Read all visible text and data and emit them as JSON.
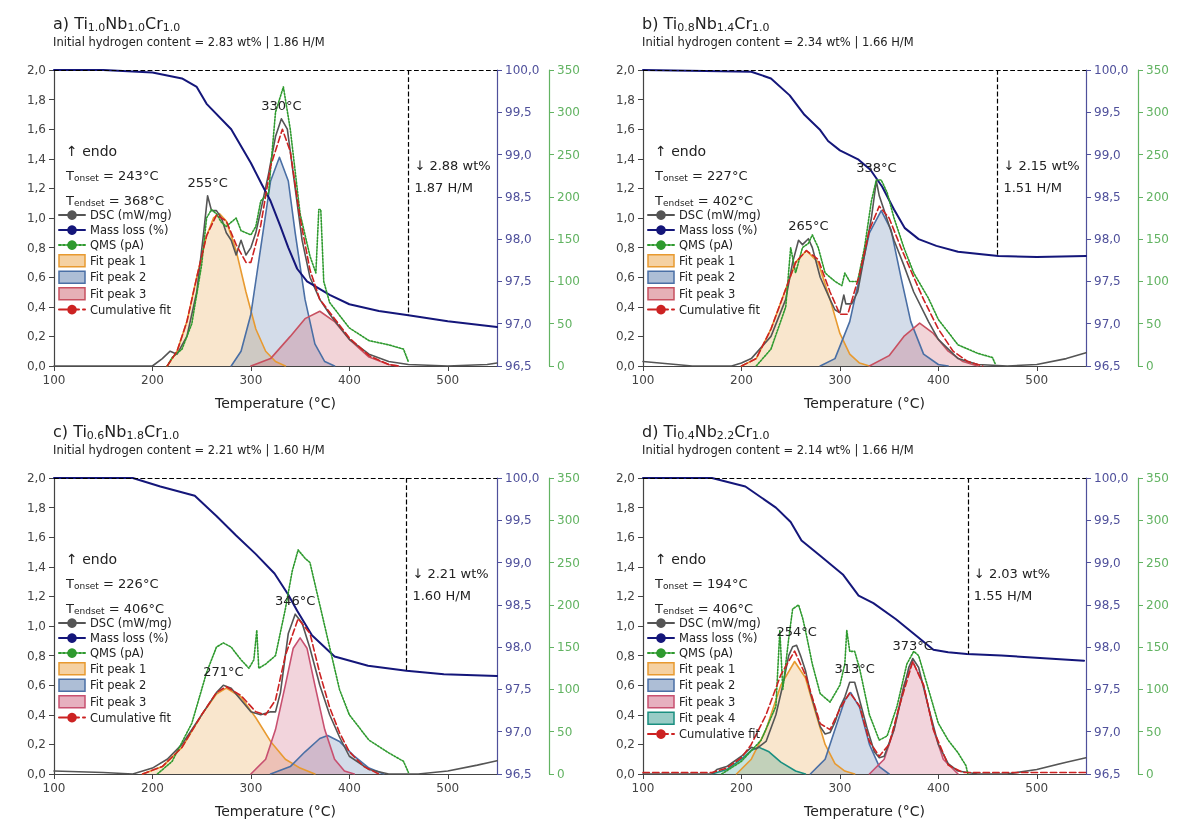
{
  "chart_data": [
    {
      "type": "line",
      "title": "a) Ti$_{1.0}$Nb$_{1.0}$Cr$_{1.0}$",
      "subtitle": "Initial hydrogen content = 2.83 wt% | 1.86 H/M",
      "xlabel": "Temperature (°C)",
      "xlim": [
        100,
        550
      ],
      "xticks": [
        100,
        200,
        300,
        400,
        500
      ],
      "ylim": [
        0,
        2
      ],
      "yticks": [
        {
          "value": 0,
          "label": "0,0"
        },
        {
          "value": 0.2,
          "label": "0,2"
        },
        {
          "value": 0.4,
          "label": "0,4"
        },
        {
          "value": 0.6,
          "label": "0,6"
        },
        {
          "value": 0.8,
          "label": "0,8"
        },
        {
          "value": 1,
          "label": "1,0"
        },
        {
          "value": 1.2,
          "label": "1,2"
        },
        {
          "value": 1.4,
          "label": "1,4"
        },
        {
          "value": 1.6,
          "label": "1,6"
        },
        {
          "value": 1.8,
          "label": "1,8"
        },
        {
          "value": 2,
          "label": "2,0"
        }
      ],
      "y2lim": [
        96.5,
        100
      ],
      "y2ticks": [
        {
          "value": 96.5,
          "label": "96,5"
        },
        {
          "value": 97,
          "label": "97,0"
        },
        {
          "value": 97.5,
          "label": "97,5"
        },
        {
          "value": 98,
          "label": "98,0"
        },
        {
          "value": 98.5,
          "label": "98,5"
        },
        {
          "value": 99,
          "label": "99,0"
        },
        {
          "value": 99.5,
          "label": "99,5"
        },
        {
          "value": 100,
          "label": "100,0"
        }
      ],
      "y3lim": [
        0,
        350
      ],
      "y3ticks": [
        0,
        50,
        100,
        150,
        200,
        250,
        300,
        350
      ],
      "legend": "left",
      "series": [
        {
          "name": "DSC (mW/mg)",
          "color": "#555555",
          "x": [
            100,
            200,
            210,
            218,
            225,
            235,
            245,
            252,
            256,
            260,
            265,
            270,
            275,
            280,
            285,
            290,
            295,
            300,
            305,
            310,
            318,
            325,
            331,
            337,
            345,
            352,
            360,
            370,
            380,
            400,
            420,
            440,
            460,
            500,
            540,
            550
          ],
          "values": [
            0,
            0,
            0.05,
            0.1,
            0.08,
            0.2,
            0.5,
            0.9,
            1.15,
            1.05,
            1.05,
            1,
            0.9,
            0.85,
            0.75,
            0.85,
            0.75,
            0.8,
            0.9,
            1.05,
            1.3,
            1.55,
            1.67,
            1.6,
            1.2,
            0.85,
            0.6,
            0.45,
            0.35,
            0.18,
            0.08,
            0.03,
            0.01,
            0,
            0.01,
            0.02
          ]
        },
        {
          "name": "Mass loss (%)",
          "color": "#14167a",
          "axis": "y2",
          "x": [
            100,
            150,
            200,
            230,
            245,
            255,
            280,
            300,
            311,
            320,
            330,
            338,
            347,
            357,
            380,
            400,
            430,
            460,
            500,
            550
          ],
          "values": [
            100,
            100,
            99.97,
            99.9,
            99.8,
            99.6,
            99.3,
            98.9,
            98.65,
            98.45,
            98.15,
            97.9,
            97.65,
            97.5,
            97.34,
            97.23,
            97.15,
            97.1,
            97.03,
            96.96
          ]
        },
        {
          "name": "QMS (pA)",
          "color": "#2e9a2e",
          "axis": "y3",
          "line_style": "dotted",
          "x": [
            215,
            220,
            230,
            240,
            250,
            255,
            260,
            265,
            270,
            275,
            280,
            285,
            290,
            300,
            305,
            310,
            318,
            325,
            333,
            340,
            345,
            350,
            360,
            366,
            369,
            371,
            374,
            380,
            400,
            420,
            440,
            455,
            460
          ],
          "values": [
            0,
            10,
            20,
            50,
            120,
            175,
            185,
            180,
            170,
            165,
            170,
            175,
            160,
            155,
            165,
            195,
            205,
            300,
            330,
            280,
            230,
            180,
            130,
            110,
            185,
            185,
            100,
            75,
            45,
            30,
            25,
            20,
            5
          ]
        },
        {
          "name": "Fit peak 1",
          "type": "area",
          "color": "#e89a30",
          "x": [
            215,
            225,
            235,
            245,
            255,
            262,
            268,
            275,
            285,
            295,
            305,
            315,
            325,
            335
          ],
          "values": [
            0,
            0.1,
            0.3,
            0.6,
            0.88,
            1,
            1.03,
            0.98,
            0.78,
            0.5,
            0.25,
            0.1,
            0.03,
            0
          ]
        },
        {
          "name": "Fit peak 2",
          "type": "area",
          "color": "#4a6fa5",
          "x": [
            280,
            290,
            300,
            310,
            320,
            329,
            338,
            345,
            355,
            365,
            375,
            385
          ],
          "values": [
            0,
            0.1,
            0.35,
            0.8,
            1.25,
            1.41,
            1.25,
            0.9,
            0.45,
            0.15,
            0.03,
            0
          ]
        },
        {
          "name": "Fit peak 3",
          "type": "area",
          "color": "#c85060",
          "x": [
            300,
            320,
            340,
            355,
            370,
            385,
            400,
            420,
            440,
            450
          ],
          "values": [
            0,
            0.05,
            0.2,
            0.32,
            0.37,
            0.3,
            0.18,
            0.06,
            0.01,
            0
          ]
        },
        {
          "name": "Cumulative fit",
          "color": "#cc2222",
          "line_style": "dashed",
          "x": [
            215,
            225,
            235,
            245,
            255,
            265,
            275,
            285,
            295,
            300,
            310,
            320,
            332,
            340,
            350,
            360,
            370,
            385,
            400,
            420,
            440,
            450
          ],
          "values": [
            0,
            0.1,
            0.3,
            0.6,
            0.88,
            1.02,
            0.98,
            0.82,
            0.7,
            0.7,
            0.95,
            1.35,
            1.6,
            1.45,
            1,
            0.65,
            0.45,
            0.32,
            0.19,
            0.07,
            0.01,
            0
          ]
        }
      ],
      "ref_lines": [
        {
          "axis": "x",
          "value": 460,
          "color": "#000000",
          "line_style": "dashed"
        },
        {
          "axis": "y2",
          "value": 100,
          "color": "#000000",
          "line_style": "dashed"
        }
      ],
      "annotations": [
        "↑ endo",
        "T$_{onset}$ = 243°C",
        "T$_{endset}$ = 368°C",
        "↓ 2.88 wt%",
        "1.87 H/M",
        {
          "text": "330°C",
          "x": 331,
          "y": 1.67
        },
        {
          "text": "255°C",
          "x": 256,
          "y": 1.15
        }
      ]
    },
    {
      "type": "line",
      "title": "b) Ti$_{0.8}$Nb$_{1.4}$Cr$_{1.0}$",
      "subtitle": "Initial hydrogen content = 2.34 wt% | 1.66 H/M",
      "xlabel": "Temperature (°C)",
      "xlim": [
        100,
        550
      ],
      "xticks": [
        100,
        200,
        300,
        400,
        500
      ],
      "ylim": [
        0,
        2
      ],
      "yticks": [
        {
          "value": 0,
          "label": "0,0"
        },
        {
          "value": 0.2,
          "label": "0,2"
        },
        {
          "value": 0.4,
          "label": "0,4"
        },
        {
          "value": 0.6,
          "label": "0,6"
        },
        {
          "value": 0.8,
          "label": "0,8"
        },
        {
          "value": 1,
          "label": "1,0"
        },
        {
          "value": 1.2,
          "label": "1,2"
        },
        {
          "value": 1.4,
          "label": "1,4"
        },
        {
          "value": 1.6,
          "label": "1,6"
        },
        {
          "value": 1.8,
          "label": "1,8"
        },
        {
          "value": 2,
          "label": "2,0"
        }
      ],
      "y2lim": [
        96.5,
        100
      ],
      "y2ticks": [
        {
          "value": 96.5,
          "label": "96,5"
        },
        {
          "value": 97,
          "label": "97,0"
        },
        {
          "value": 97.5,
          "label": "97,5"
        },
        {
          "value": 98,
          "label": "98,0"
        },
        {
          "value": 98.5,
          "label": "98,5"
        },
        {
          "value": 99,
          "label": "99,0"
        },
        {
          "value": 99.5,
          "label": "99,5"
        },
        {
          "value": 100,
          "label": "100,0"
        }
      ],
      "y3lim": [
        0,
        350
      ],
      "y3ticks": [
        0,
        50,
        100,
        150,
        200,
        250,
        300,
        350
      ],
      "legend": "left",
      "series": [
        {
          "name": "DSC (mW/mg)",
          "color": "#555555",
          "x": [
            100,
            150,
            190,
            200,
            210,
            230,
            245,
            252,
            258,
            262,
            268,
            272,
            280,
            290,
            295,
            300,
            304,
            306,
            312,
            318,
            325,
            332,
            337,
            340,
            345,
            355,
            365,
            375,
            390,
            400,
            420,
            440,
            470,
            500,
            530,
            550
          ],
          "values": [
            0.03,
            0,
            0,
            0.02,
            0.05,
            0.2,
            0.45,
            0.7,
            0.85,
            0.82,
            0.86,
            0.8,
            0.6,
            0.45,
            0.38,
            0.36,
            0.48,
            0.42,
            0.42,
            0.5,
            0.75,
            1,
            1.25,
            1.15,
            1.05,
            0.85,
            0.68,
            0.5,
            0.3,
            0.18,
            0.05,
            0.01,
            0,
            0.01,
            0.05,
            0.09
          ]
        },
        {
          "name": "Mass loss (%)",
          "color": "#14167a",
          "axis": "y2",
          "x": [
            100,
            210,
            230,
            249,
            264,
            280,
            288,
            300,
            319,
            331,
            343,
            355,
            366,
            380,
            398,
            420,
            461,
            500,
            550
          ],
          "values": [
            100,
            99.98,
            99.9,
            99.7,
            99.47,
            99.29,
            99.16,
            99.05,
            98.94,
            98.82,
            98.62,
            98.35,
            98.13,
            98,
            97.92,
            97.85,
            97.8,
            97.79,
            97.8
          ]
        },
        {
          "name": "QMS (pA)",
          "color": "#2e9a2e",
          "axis": "y3",
          "line_style": "dotted",
          "x": [
            215,
            230,
            245,
            250,
            255,
            262,
            268,
            272,
            278,
            285,
            295,
            302,
            305,
            310,
            318,
            325,
            332,
            337,
            342,
            348,
            355,
            365,
            375,
            390,
            400,
            420,
            440,
            455,
            458
          ],
          "values": [
            0,
            20,
            70,
            140,
            110,
            140,
            145,
            155,
            140,
            110,
            100,
            95,
            110,
            100,
            100,
            140,
            195,
            220,
            220,
            205,
            175,
            140,
            110,
            80,
            55,
            25,
            15,
            10,
            2
          ]
        },
        {
          "name": "Fit peak 1",
          "type": "area",
          "color": "#e89a30",
          "x": [
            200,
            215,
            230,
            245,
            255,
            266,
            278,
            290,
            300,
            310,
            320,
            330
          ],
          "values": [
            0,
            0.05,
            0.25,
            0.52,
            0.7,
            0.78,
            0.7,
            0.45,
            0.22,
            0.08,
            0.02,
            0
          ]
        },
        {
          "name": "Fit peak 2",
          "type": "area",
          "color": "#4a6fa5",
          "x": [
            280,
            295,
            310,
            320,
            330,
            342,
            352,
            362,
            372,
            385,
            400,
            410
          ],
          "values": [
            0,
            0.05,
            0.3,
            0.6,
            0.9,
            1.05,
            0.92,
            0.6,
            0.3,
            0.08,
            0.01,
            0
          ]
        },
        {
          "name": "Fit peak 3",
          "type": "area",
          "color": "#c85060",
          "x": [
            330,
            350,
            365,
            381,
            395,
            410,
            425,
            440
          ],
          "values": [
            0,
            0.07,
            0.2,
            0.29,
            0.22,
            0.1,
            0.03,
            0
          ]
        },
        {
          "name": "Cumulative fit",
          "color": "#cc2222",
          "line_style": "dashed",
          "x": [
            200,
            215,
            230,
            245,
            255,
            266,
            278,
            290,
            300,
            308,
            320,
            330,
            340,
            350,
            362,
            375,
            385,
            400,
            415,
            430,
            445
          ],
          "values": [
            0,
            0.05,
            0.25,
            0.52,
            0.7,
            0.78,
            0.72,
            0.5,
            0.35,
            0.35,
            0.62,
            0.92,
            1.08,
            1,
            0.8,
            0.6,
            0.45,
            0.25,
            0.1,
            0.03,
            0
          ]
        }
      ],
      "ref_lines": [
        {
          "axis": "x",
          "value": 460,
          "color": "#000000",
          "line_style": "dashed"
        },
        {
          "axis": "y2",
          "value": 100,
          "color": "#000000",
          "line_style": "dashed"
        }
      ],
      "annotations": [
        "↑ endo",
        "T$_{onset}$ = 227°C",
        "T$_{endset}$ = 402°C",
        "↓ 2.15 wt%",
        "1.51 H/M",
        {
          "text": "338°C",
          "x": 337,
          "y": 1.25
        },
        {
          "text": "265°C",
          "x": 268,
          "y": 0.86
        }
      ]
    },
    {
      "type": "line",
      "title": "c) Ti$_{0.6}$Nb$_{1.8}$Cr$_{1.0}$",
      "subtitle": "Initial hydrogen content = 2.21 wt% | 1.60 H/M",
      "xlabel": "Temperature (°C)",
      "xlim": [
        100,
        550
      ],
      "xticks": [
        100,
        200,
        300,
        400,
        500
      ],
      "ylim": [
        0,
        2
      ],
      "yticks": [
        {
          "value": 0,
          "label": "0,0"
        },
        {
          "value": 0.2,
          "label": "0,2"
        },
        {
          "value": 0.4,
          "label": "0,4"
        },
        {
          "value": 0.6,
          "label": "0,6"
        },
        {
          "value": 0.8,
          "label": "0,8"
        },
        {
          "value": 1,
          "label": "1,0"
        },
        {
          "value": 1.2,
          "label": "1,2"
        },
        {
          "value": 1.4,
          "label": "1,4"
        },
        {
          "value": 1.6,
          "label": "1,6"
        },
        {
          "value": 1.8,
          "label": "1,8"
        },
        {
          "value": 2,
          "label": "2,0"
        }
      ],
      "y2lim": [
        96.5,
        100
      ],
      "y2ticks": [
        {
          "value": 96.5,
          "label": "96,5"
        },
        {
          "value": 97,
          "label": "97,0"
        },
        {
          "value": 97.5,
          "label": "97,5"
        },
        {
          "value": 98,
          "label": "98,0"
        },
        {
          "value": 98.5,
          "label": "98,5"
        },
        {
          "value": 99,
          "label": "99,0"
        },
        {
          "value": 99.5,
          "label": "99,5"
        },
        {
          "value": 100,
          "label": "100,0"
        }
      ],
      "y3lim": [
        0,
        350
      ],
      "y3ticks": [
        0,
        50,
        100,
        150,
        200,
        250,
        300,
        350
      ],
      "legend": "left",
      "series": [
        {
          "name": "DSC (mW/mg)",
          "color": "#555555",
          "x": [
            100,
            150,
            180,
            190,
            200,
            215,
            230,
            245,
            255,
            265,
            272,
            280,
            290,
            300,
            310,
            320,
            325,
            330,
            338,
            345,
            352,
            360,
            370,
            380,
            390,
            400,
            420,
            440,
            470,
            500,
            530,
            550
          ],
          "values": [
            0.02,
            0.01,
            0,
            0.02,
            0.04,
            0.1,
            0.2,
            0.35,
            0.45,
            0.55,
            0.6,
            0.58,
            0.5,
            0.42,
            0.4,
            0.42,
            0.42,
            0.55,
            0.95,
            1.08,
            1.02,
            0.85,
            0.6,
            0.4,
            0.25,
            0.12,
            0.03,
            0,
            0,
            0.02,
            0.06,
            0.09
          ]
        },
        {
          "name": "Mass loss (%)",
          "color": "#14167a",
          "axis": "y2",
          "x": [
            100,
            180,
            208,
            243,
            265,
            285,
            305,
            324,
            338,
            347,
            362,
            385,
            419,
            458,
            496,
            550
          ],
          "values": [
            100,
            100,
            99.9,
            99.79,
            99.55,
            99.32,
            99.1,
            98.87,
            98.62,
            98.43,
            98.14,
            97.89,
            97.78,
            97.72,
            97.68,
            97.66
          ]
        },
        {
          "name": "QMS (pA)",
          "color": "#2e9a2e",
          "axis": "y3",
          "line_style": "dotted",
          "x": [
            205,
            220,
            240,
            255,
            265,
            272,
            280,
            290,
            298,
            303,
            306,
            308,
            315,
            325,
            335,
            342,
            348,
            355,
            360,
            370,
            380,
            390,
            400,
            420,
            440,
            455,
            460
          ],
          "values": [
            0,
            15,
            60,
            120,
            150,
            155,
            150,
            135,
            125,
            135,
            170,
            125,
            130,
            140,
            195,
            240,
            265,
            255,
            250,
            200,
            150,
            100,
            70,
            40,
            25,
            15,
            2
          ]
        },
        {
          "name": "Fit peak 1",
          "type": "area",
          "color": "#e89a30",
          "x": [
            190,
            210,
            230,
            250,
            265,
            275,
            290,
            305,
            320,
            335,
            350,
            365
          ],
          "values": [
            0,
            0.05,
            0.18,
            0.4,
            0.54,
            0.58,
            0.52,
            0.38,
            0.22,
            0.1,
            0.04,
            0
          ]
        },
        {
          "name": "Fit peak 2",
          "type": "area",
          "color": "#4a6fa5",
          "x": [
            320,
            340,
            355,
            370,
            378,
            390,
            405,
            420,
            435
          ],
          "values": [
            0,
            0.05,
            0.15,
            0.24,
            0.26,
            0.22,
            0.12,
            0.04,
            0
          ]
        },
        {
          "name": "Fit peak 3",
          "type": "area",
          "color": "#c85070",
          "x": [
            300,
            315,
            325,
            335,
            343,
            350,
            357,
            365,
            375,
            385,
            395,
            405
          ],
          "values": [
            0,
            0.1,
            0.3,
            0.6,
            0.85,
            0.92,
            0.85,
            0.6,
            0.3,
            0.1,
            0.02,
            0
          ]
        },
        {
          "name": "Cumulative fit",
          "color": "#cc2222",
          "line_style": "dashed",
          "x": [
            190,
            210,
            230,
            250,
            265,
            275,
            290,
            305,
            315,
            325,
            335,
            348,
            360,
            370,
            380,
            390,
            400,
            415,
            430
          ],
          "values": [
            0,
            0.05,
            0.18,
            0.4,
            0.55,
            0.59,
            0.53,
            0.42,
            0.4,
            0.5,
            0.8,
            1.05,
            0.95,
            0.68,
            0.45,
            0.28,
            0.15,
            0.05,
            0
          ]
        }
      ],
      "ref_lines": [
        {
          "axis": "x",
          "value": 458,
          "color": "#000000",
          "line_style": "dashed"
        },
        {
          "axis": "y2",
          "value": 100,
          "color": "#000000",
          "line_style": "dashed"
        }
      ],
      "annotations": [
        "↑ endo",
        "T$_{onset}$ = 226°C",
        "T$_{endset}$ = 406°C",
        "↓ 2.21 wt%",
        "1.60 H/M",
        {
          "text": "346°C",
          "x": 345,
          "y": 1.08
        },
        {
          "text": "271°C",
          "x": 272,
          "y": 0.6
        }
      ]
    },
    {
      "type": "line",
      "title": "d) Ti$_{0.4}$Nb$_{2.2}$Cr$_{1.0}$",
      "subtitle": "Initial hydrogen content = 2.14 wt% | 1.66 H/M",
      "xlabel": "Temperature (°C)",
      "xlim": [
        100,
        550
      ],
      "xticks": [
        100,
        200,
        300,
        400,
        500
      ],
      "ylim": [
        0,
        2
      ],
      "yticks": [
        {
          "value": 0,
          "label": "0,0"
        },
        {
          "value": 0.2,
          "label": "0,2"
        },
        {
          "value": 0.4,
          "label": "0,4"
        },
        {
          "value": 0.6,
          "label": "0,6"
        },
        {
          "value": 0.8,
          "label": "0,8"
        },
        {
          "value": 1,
          "label": "1,0"
        },
        {
          "value": 1.2,
          "label": "1,2"
        },
        {
          "value": 1.4,
          "label": "1,4"
        },
        {
          "value": 1.6,
          "label": "1,6"
        },
        {
          "value": 1.8,
          "label": "1,8"
        },
        {
          "value": 2,
          "label": "2,0"
        }
      ],
      "y2lim": [
        96.5,
        100
      ],
      "y2ticks": [
        {
          "value": 96.5,
          "label": "96,5"
        },
        {
          "value": 97,
          "label": "97,0"
        },
        {
          "value": 97.5,
          "label": "97,5"
        },
        {
          "value": 98,
          "label": "98,0"
        },
        {
          "value": 98.5,
          "label": "98,5"
        },
        {
          "value": 99,
          "label": "99,0"
        },
        {
          "value": 99.5,
          "label": "99,5"
        },
        {
          "value": 100,
          "label": "100,0"
        }
      ],
      "y3lim": [
        0,
        350
      ],
      "y3ticks": [
        0,
        50,
        100,
        150,
        200,
        250,
        300,
        350
      ],
      "legend": "left",
      "series": [
        {
          "name": "DSC (mW/mg)",
          "color": "#555555",
          "x": [
            100,
            170,
            175,
            185,
            200,
            210,
            215,
            225,
            235,
            242,
            248,
            252,
            256,
            260,
            265,
            270,
            280,
            285,
            290,
            295,
            300,
            305,
            310,
            315,
            320,
            328,
            335,
            340,
            345,
            355,
            362,
            370,
            374,
            380,
            390,
            400,
            410,
            420,
            440,
            470,
            500,
            530,
            550
          ],
          "values": [
            0,
            0,
            0.03,
            0.05,
            0.12,
            0.18,
            0.17,
            0.22,
            0.4,
            0.6,
            0.8,
            0.86,
            0.87,
            0.8,
            0.7,
            0.55,
            0.32,
            0.27,
            0.28,
            0.35,
            0.45,
            0.52,
            0.62,
            0.62,
            0.5,
            0.3,
            0.15,
            0.11,
            0.12,
            0.3,
            0.5,
            0.72,
            0.78,
            0.72,
            0.45,
            0.2,
            0.07,
            0.02,
            0,
            0,
            0.03,
            0.08,
            0.11
          ]
        },
        {
          "name": "Mass loss (%)",
          "color": "#14167a",
          "axis": "y2",
          "x": [
            100,
            170,
            204,
            235,
            250,
            261,
            280,
            303,
            319,
            334,
            357,
            376,
            395,
            410,
            429,
            464,
            548
          ],
          "values": [
            100,
            100,
            99.9,
            99.65,
            99.48,
            99.26,
            99.08,
            98.86,
            98.61,
            98.52,
            98.33,
            98.15,
            97.97,
            97.94,
            97.92,
            97.9,
            97.84
          ]
        },
        {
          "name": "QMS (pA)",
          "color": "#2e9a2e",
          "axis": "y3",
          "line_style": "dotted",
          "x": [
            180,
            200,
            220,
            235,
            239,
            242,
            248,
            252,
            258,
            262,
            265,
            272,
            280,
            290,
            300,
            305,
            307,
            310,
            315,
            320,
            330,
            340,
            348,
            358,
            368,
            375,
            380,
            390,
            400,
            410,
            420,
            428,
            430
          ],
          "values": [
            0,
            15,
            40,
            80,
            170,
            100,
            160,
            195,
            200,
            185,
            170,
            130,
            95,
            85,
            105,
            130,
            170,
            145,
            145,
            125,
            70,
            40,
            45,
            80,
            130,
            145,
            140,
            100,
            60,
            40,
            25,
            10,
            0
          ]
        },
        {
          "name": "Fit peak 1",
          "type": "area",
          "color": "#e89a30",
          "x": [
            195,
            210,
            225,
            240,
            254,
            265,
            275,
            285,
            295,
            305,
            315
          ],
          "values": [
            0,
            0.1,
            0.3,
            0.6,
            0.76,
            0.65,
            0.42,
            0.2,
            0.07,
            0.02,
            0
          ]
        },
        {
          "name": "Fit peak 2",
          "type": "area",
          "color": "#4a6fa5",
          "x": [
            270,
            285,
            295,
            305,
            311,
            320,
            330,
            340,
            350
          ],
          "values": [
            0,
            0.1,
            0.3,
            0.5,
            0.55,
            0.45,
            0.2,
            0.05,
            0
          ]
        },
        {
          "name": "Fit peak 3",
          "type": "area",
          "color": "#c85070",
          "x": [
            330,
            345,
            355,
            365,
            374,
            385,
            395,
            405,
            420
          ],
          "values": [
            0,
            0.1,
            0.3,
            0.6,
            0.76,
            0.6,
            0.3,
            0.1,
            0
          ]
        },
        {
          "name": "Fit peak 4",
          "type": "area",
          "color": "#1a8f80",
          "x": [
            170,
            185,
            200,
            210,
            218,
            228,
            240,
            255,
            265
          ],
          "values": [
            0,
            0.03,
            0.1,
            0.16,
            0.18,
            0.15,
            0.08,
            0.02,
            0
          ]
        },
        {
          "name": "Cumulative fit",
          "color": "#cc2222",
          "line_style": "dashed",
          "x": [
            100,
            170,
            185,
            200,
            210,
            225,
            240,
            254,
            265,
            280,
            290,
            300,
            310,
            320,
            330,
            340,
            350,
            360,
            374,
            385,
            395,
            410,
            425,
            550
          ],
          "values": [
            0.01,
            0.01,
            0.04,
            0.11,
            0.2,
            0.4,
            0.67,
            0.83,
            0.67,
            0.34,
            0.3,
            0.44,
            0.55,
            0.46,
            0.22,
            0.12,
            0.2,
            0.45,
            0.76,
            0.6,
            0.3,
            0.06,
            0.01,
            0.01
          ]
        }
      ],
      "ref_lines": [
        {
          "axis": "x",
          "value": 430,
          "color": "#000000",
          "line_style": "dashed"
        },
        {
          "axis": "y2",
          "value": 100,
          "color": "#000000",
          "line_style": "dashed"
        }
      ],
      "annotations": [
        "↑ endo",
        "T$_{onset}$ = 194°C",
        "T$_{endset}$ = 406°C",
        "↓ 2.03 wt%",
        "1.55 H/M",
        {
          "text": "254°C",
          "x": 256,
          "y": 0.87
        },
        {
          "text": "313°C",
          "x": 315,
          "y": 0.62
        },
        {
          "text": "373°C",
          "x": 374,
          "y": 0.78
        }
      ]
    }
  ]
}
